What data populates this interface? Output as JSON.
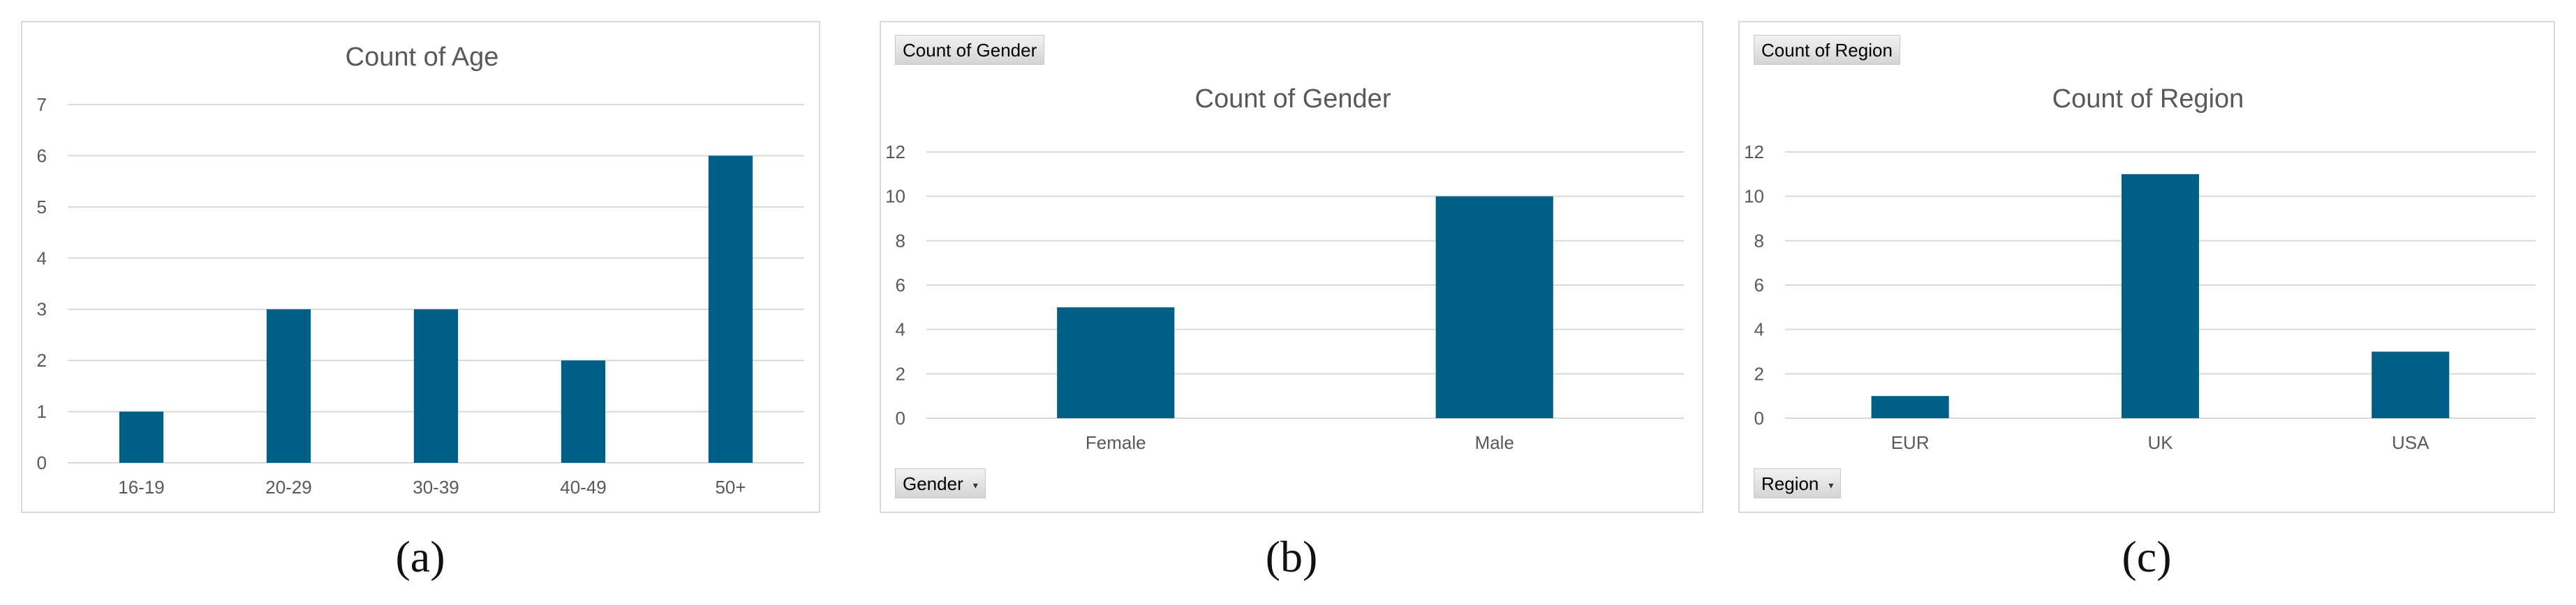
{
  "colors": {
    "bar": "#005f87",
    "grid": "#d9d9d9",
    "axis_text": "#595959",
    "title_text": "#595959"
  },
  "panels": [
    {
      "caption": "(a)"
    },
    {
      "caption": "(b)",
      "field_button": "Count of Gender",
      "axis_button": "Gender"
    },
    {
      "caption": "(c)",
      "field_button": "Count of Region",
      "axis_button": "Region"
    }
  ],
  "chart_data": [
    {
      "type": "bar",
      "title": "Count of Age",
      "categories": [
        "16-19",
        "20-29",
        "30-39",
        "40-49",
        "50+"
      ],
      "values": [
        1,
        3,
        3,
        2,
        6
      ],
      "ylim": [
        0,
        7
      ],
      "yticks": [
        0,
        1,
        2,
        3,
        4,
        5,
        6,
        7
      ],
      "grid": true,
      "legend": "none"
    },
    {
      "type": "bar",
      "title": "Count of Gender",
      "categories": [
        "Female",
        "Male"
      ],
      "values": [
        5,
        10
      ],
      "ylim": [
        0,
        12
      ],
      "yticks": [
        0,
        2,
        4,
        6,
        8,
        10,
        12
      ],
      "grid": true,
      "legend": "none"
    },
    {
      "type": "bar",
      "title": "Count of Region",
      "categories": [
        "EUR",
        "UK",
        "USA"
      ],
      "values": [
        1,
        11,
        3
      ],
      "ylim": [
        0,
        12
      ],
      "yticks": [
        0,
        2,
        4,
        6,
        8,
        10,
        12
      ],
      "grid": true,
      "legend": "none"
    }
  ]
}
